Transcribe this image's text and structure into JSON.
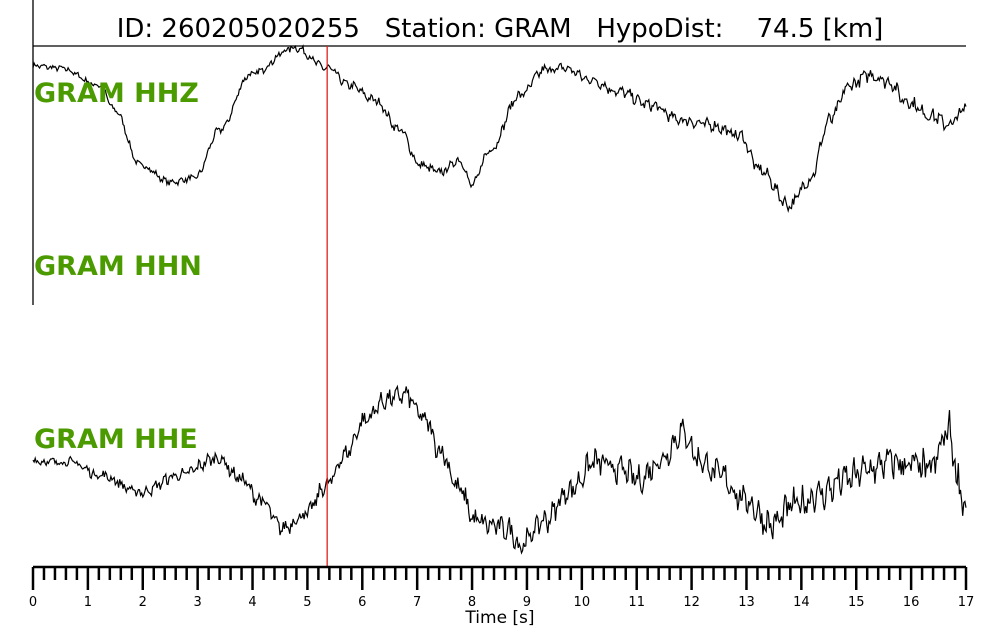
{
  "chart_data": {
    "type": "line",
    "title": "ID: 260205020255   Station: GRAM   HypoDist:    74.5 [km]",
    "xlabel": "Time [s]",
    "xlim": [
      0,
      17
    ],
    "x_major_step": 1,
    "x_minor_step": 0.2,
    "xticks": [
      "0",
      "1",
      "2",
      "3",
      "4",
      "5",
      "6",
      "7",
      "8",
      "9",
      "10",
      "11",
      "12",
      "13",
      "14",
      "15",
      "16",
      "17"
    ],
    "pick_time": 5.36,
    "pick_color": "#e0201c",
    "label_color": "#4a9a00",
    "trace_color": "#000000",
    "grid": false,
    "series": [
      {
        "name": "GRAM HHZ",
        "points": [
          [
            0,
            0.76
          ],
          [
            0.49,
            0.73
          ],
          [
            1.22,
            0.52
          ],
          [
            1.49,
            0.22
          ],
          [
            1.95,
            -0.45
          ],
          [
            2.5,
            -0.66
          ],
          [
            2.95,
            -0.61
          ],
          [
            3.41,
            -0.02
          ],
          [
            3.95,
            0.65
          ],
          [
            4.77,
            0.98
          ],
          [
            5.36,
            0.73
          ],
          [
            5.77,
            0.52
          ],
          [
            6.23,
            0.34
          ],
          [
            6.68,
            -0.02
          ],
          [
            7.05,
            -0.45
          ],
          [
            7.41,
            -0.54
          ],
          [
            7.78,
            -0.39
          ],
          [
            8.0,
            -0.7
          ],
          [
            8.32,
            -0.27
          ],
          [
            8.87,
            0.4
          ],
          [
            9.33,
            0.71
          ],
          [
            9.69,
            0.73
          ],
          [
            10.15,
            0.59
          ],
          [
            10.69,
            0.44
          ],
          [
            11.24,
            0.28
          ],
          [
            11.79,
            0.1
          ],
          [
            12.33,
            0.04
          ],
          [
            12.88,
            -0.09
          ],
          [
            13.24,
            -0.51
          ],
          [
            13.79,
            -0.94
          ],
          [
            14.15,
            -0.63
          ],
          [
            14.52,
            0.1
          ],
          [
            14.88,
            0.52
          ],
          [
            15.25,
            0.65
          ],
          [
            15.61,
            0.56
          ],
          [
            15.88,
            0.34
          ],
          [
            16.34,
            0.16
          ],
          [
            16.7,
            0.04
          ],
          [
            17,
            0.24
          ]
        ]
      },
      {
        "name": "GRAM HHN",
        "points": []
      },
      {
        "name": "GRAM HHE",
        "points": [
          [
            0,
            0.15
          ],
          [
            0.22,
            0.13
          ],
          [
            0.67,
            0.13
          ],
          [
            1.22,
            -0.04
          ],
          [
            1.95,
            -0.26
          ],
          [
            2.68,
            -0.04
          ],
          [
            3.37,
            0.18
          ],
          [
            3.77,
            -0.08
          ],
          [
            4.14,
            -0.36
          ],
          [
            4.54,
            -0.72
          ],
          [
            4.95,
            -0.55
          ],
          [
            5.36,
            -0.17
          ],
          [
            5.68,
            0.22
          ],
          [
            6.05,
            0.67
          ],
          [
            6.41,
            0.92
          ],
          [
            6.78,
            0.99
          ],
          [
            7.14,
            0.67
          ],
          [
            7.41,
            0.28
          ],
          [
            7.78,
            -0.23
          ],
          [
            8.05,
            -0.62
          ],
          [
            8.32,
            -0.68
          ],
          [
            8.69,
            -0.74
          ],
          [
            8.87,
            -0.94
          ],
          [
            9.33,
            -0.62
          ],
          [
            9.78,
            -0.23
          ],
          [
            10.24,
            0.13
          ],
          [
            10.69,
            0.03
          ],
          [
            11.06,
            -0.1
          ],
          [
            11.42,
            0.15
          ],
          [
            11.84,
            0.51
          ],
          [
            12.15,
            0.15
          ],
          [
            12.51,
            -0.04
          ],
          [
            12.97,
            -0.36
          ],
          [
            13.46,
            -0.68
          ],
          [
            13.88,
            -0.42
          ],
          [
            14.33,
            -0.29
          ],
          [
            14.79,
            -0.1
          ],
          [
            15.25,
            0.03
          ],
          [
            15.61,
            0.13
          ],
          [
            15.97,
            0.09
          ],
          [
            16.34,
            0.03
          ],
          [
            16.7,
            0.54
          ],
          [
            16.85,
            -0.1
          ],
          [
            17,
            -0.46
          ]
        ]
      }
    ]
  }
}
